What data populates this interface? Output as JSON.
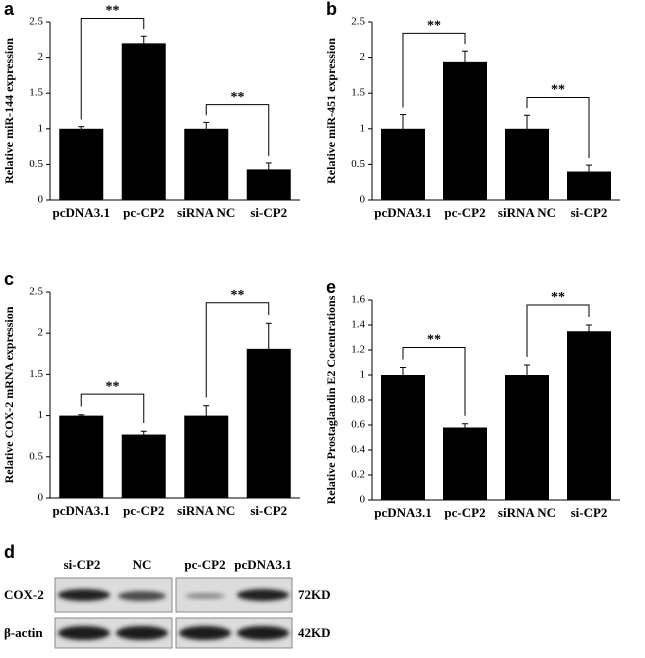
{
  "chart_data": [
    {
      "type": "bar",
      "label": "a",
      "y_label": "Relative  miR-144  expression",
      "categories": [
        "pcDNA3.1",
        "pc-CP2",
        "siRNA NC",
        "si-CP2"
      ],
      "values": [
        1,
        2.2,
        1,
        0.43
      ],
      "errors": [
        0.03,
        0.1,
        0.09,
        0.09
      ],
      "color": "#000000",
      "ylim": [
        0,
        2.5
      ],
      "yticks": [
        0,
        0.5,
        1,
        1.5,
        2,
        2.5
      ],
      "annotations": [
        {
          "text": "**",
          "categories": [
            "pcDNA3.1",
            "pc-CP2"
          ]
        },
        {
          "text": "**",
          "categories": [
            "siRNA NC",
            "si-CP2"
          ]
        }
      ]
    },
    {
      "type": "bar",
      "label": "b",
      "y_label": "Relative  miR-451  expression",
      "categories": [
        "pcDNA3.1",
        "pc-CP2",
        "siRNA NC",
        "si-CP2"
      ],
      "values": [
        1,
        1.94,
        1,
        0.4
      ],
      "errors": [
        0.2,
        0.15,
        0.19,
        0.09
      ],
      "color": "#000000",
      "ylim": [
        0,
        2.5
      ],
      "yticks": [
        0,
        0.5,
        1,
        1.5,
        2,
        2.5
      ],
      "annotations": [
        {
          "text": "**",
          "categories": [
            "pcDNA3.1",
            "pc-CP2"
          ]
        },
        {
          "text": "**",
          "categories": [
            "siRNA NC",
            "si-CP2"
          ]
        }
      ]
    },
    {
      "type": "bar",
      "label": "c",
      "y_label": "Relative  COX-2  mRNA  expression",
      "categories": [
        "pcDNA3.1",
        "pc-CP2",
        "siRNA NC",
        "si-CP2"
      ],
      "values": [
        1,
        0.77,
        1,
        1.81
      ],
      "errors": [
        0.01,
        0.04,
        0.12,
        0.31
      ],
      "color": "#000000",
      "ylim": [
        0,
        2.5
      ],
      "yticks": [
        0,
        0.5,
        1,
        1.5,
        2,
        2.5
      ],
      "annotations": [
        {
          "text": "**",
          "categories": [
            "pcDNA3.1",
            "pc-CP2"
          ]
        },
        {
          "text": "**",
          "categories": [
            "siRNA NC",
            "si-CP2"
          ]
        }
      ]
    },
    {
      "type": "bar",
      "label": "e",
      "y_label": "Relative Prostaglandin E2 Cocentrations",
      "categories": [
        "pcDNA3.1",
        "pc-CP2",
        "siRNA NC",
        "si-CP2"
      ],
      "values": [
        1,
        0.58,
        1,
        1.35
      ],
      "errors": [
        0.06,
        0.03,
        0.08,
        0.05
      ],
      "color": "#000000",
      "ylim": [
        0,
        1.6
      ],
      "yticks": [
        0,
        0.2,
        0.4,
        0.6,
        0.8,
        1,
        1.2,
        1.4,
        1.6
      ],
      "annotations": [
        {
          "text": "**",
          "categories": [
            "pcDNA3.1",
            "pc-CP2"
          ]
        },
        {
          "text": "**",
          "categories": [
            "siRNA NC",
            "si-CP2"
          ]
        }
      ]
    }
  ],
  "blot": {
    "label": "d",
    "lanes": [
      "si-CP2",
      "NC",
      "pc-CP2",
      "pcDNA3.1"
    ],
    "rows": [
      {
        "name": "COX-2",
        "size": "72KD"
      },
      {
        "name": "β-actin",
        "size": "42KD"
      }
    ]
  }
}
